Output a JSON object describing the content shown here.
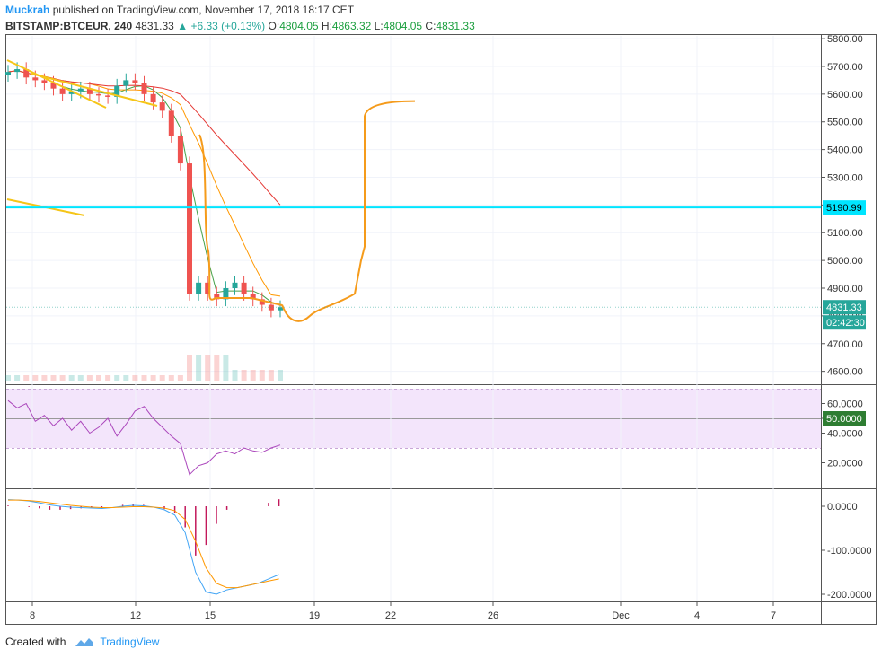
{
  "header": {
    "author": "Muckrah",
    "published": "published on TradingView.com, November 17, 2018 18:17 CET",
    "symbol": "BITSTAMP:BTCEUR, 240",
    "last": "4831.33",
    "change_arrow": "▲",
    "change": "+6.33 (+0.13%)",
    "o_label": "O:",
    "o_value": "4804.05",
    "h_label": "H:",
    "h_value": "4863.32",
    "l_label": "L:",
    "l_value": "4804.05",
    "c_label": "C:",
    "c_value": "4831.33"
  },
  "footer": {
    "created_with": "Created with",
    "brand": "TradingView",
    "logo_icon": "tradingview-cloud-icon"
  },
  "colors": {
    "up": "#26a69a",
    "down": "#ef5350",
    "hline": "#00e5ff",
    "projection": "#f59b1b",
    "rsi": "#ab47bc",
    "rsi_band": "#f3e5fb",
    "macd": "#42a5f5",
    "signal": "#ff9800",
    "histogram": "#c2185b",
    "ma_fast": "#43a047",
    "ma_mid": "#ff9800",
    "ma_slow": "#e53935",
    "trend": "#f5c518"
  },
  "chart_data": [
    {
      "type": "candlestick",
      "x_ticks": [
        "8",
        "12",
        "15",
        "19",
        "22",
        "26",
        "Dec",
        "4",
        "7"
      ],
      "y_ticks": [
        "5800.00",
        "5700.00",
        "5600.00",
        "5500.00",
        "5400.00",
        "5300.00",
        "5200.00",
        "5100.00",
        "5000.00",
        "4900.00",
        "4800.00",
        "4700.00",
        "4600.00"
      ],
      "ylim": [
        4560,
        5810
      ],
      "current_price": "4831.33",
      "countdown": "02:42:30",
      "horizontal_level": "5190.99",
      "series": [
        {
          "name": "price",
          "values": [
            5680,
            5690,
            5660,
            5650,
            5640,
            5620,
            5600,
            5610,
            5620,
            5600,
            5595,
            5590,
            5630,
            5650,
            5640,
            5600,
            5570,
            5540,
            5450,
            5350,
            4880,
            4920,
            4880,
            4860,
            4900,
            4920,
            4880,
            4860,
            4840,
            4820,
            4831
          ]
        },
        {
          "name": "projection",
          "values": [
            4840,
            4770,
            4840,
            4880,
            5050,
            5560,
            5575
          ]
        }
      ]
    },
    {
      "type": "line",
      "y_ticks": [
        "60.0000",
        "50.0000",
        "40.0000",
        "20.0000"
      ],
      "ylim": [
        5,
        75
      ],
      "band": [
        30,
        70
      ],
      "midline_label": "50.0000",
      "series": [
        {
          "name": "RSI",
          "values": [
            62,
            57,
            60,
            48,
            52,
            45,
            50,
            42,
            48,
            40,
            44,
            50,
            38,
            46,
            55,
            58,
            50,
            44,
            38,
            33,
            12,
            18,
            20,
            26,
            28,
            26,
            30,
            28,
            27,
            30,
            32
          ]
        }
      ]
    },
    {
      "type": "line",
      "y_ticks": [
        "0.0000",
        "-100.0000",
        "-200.0000"
      ],
      "ylim": [
        -215,
        40
      ],
      "series": [
        {
          "name": "MACD",
          "values": [
            15,
            14,
            12,
            8,
            3,
            0,
            -2,
            -3,
            -4,
            -5,
            -3,
            0,
            2,
            1,
            -2,
            -8,
            -20,
            -60,
            -150,
            -195,
            -200,
            -190,
            -185,
            -180,
            -175,
            -165,
            -155
          ]
        },
        {
          "name": "signal",
          "values": [
            14,
            14,
            13,
            11,
            8,
            5,
            2,
            0,
            -2,
            -3,
            -3,
            -2,
            -1,
            -1,
            -2,
            -4,
            -10,
            -30,
            -80,
            -140,
            -175,
            -185,
            -185,
            -180,
            -175,
            -170,
            -165
          ]
        }
      ]
    }
  ]
}
